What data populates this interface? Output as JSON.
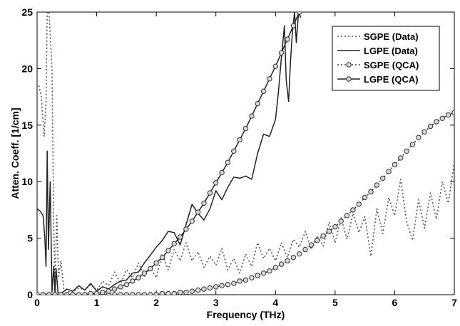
{
  "chart_data": {
    "type": "line",
    "title": "",
    "xlabel": "Frequency (THz)",
    "ylabel": "Atten. Coeff. [1/cm]",
    "xlim": [
      0,
      7
    ],
    "ylim": [
      0,
      25
    ],
    "xticks": [
      0,
      1,
      2,
      3,
      4,
      5,
      6,
      7
    ],
    "yticks": [
      0,
      5,
      10,
      15,
      20,
      25
    ],
    "grid": false,
    "legend_position": "top-right",
    "series": [
      {
        "name": "SGPE (Data)",
        "style": "dotted",
        "color": "#555555",
        "x": [
          0.03,
          0.07,
          0.12,
          0.15,
          0.17,
          0.2,
          0.25,
          0.28,
          0.3,
          0.33,
          0.36,
          0.4,
          0.45,
          0.5,
          0.6,
          0.7,
          0.8,
          0.9,
          1.0,
          1.1,
          1.2,
          1.3,
          1.4,
          1.5,
          1.6,
          1.7,
          1.8,
          1.9,
          2.0,
          2.1,
          2.2,
          2.3,
          2.4,
          2.5,
          2.6,
          2.7,
          2.8,
          2.9,
          3.0,
          3.1,
          3.2,
          3.3,
          3.4,
          3.5,
          3.6,
          3.7,
          3.8,
          3.9,
          4.0,
          4.1,
          4.2,
          4.3,
          4.4,
          4.5,
          4.6,
          4.7,
          4.8,
          4.9,
          5.0,
          5.1,
          5.2,
          5.3,
          5.4,
          5.5,
          5.6,
          5.7,
          5.8,
          5.9,
          6.0,
          6.1,
          6.2,
          6.3,
          6.4,
          6.5,
          6.6,
          6.7,
          6.8,
          6.9,
          7.0
        ],
        "y": [
          18.5,
          17.5,
          14,
          17,
          25,
          25,
          20,
          6,
          1,
          7,
          1.5,
          3,
          0.4,
          0.3,
          0.2,
          0.6,
          0.4,
          0.9,
          0.4,
          1.2,
          0.8,
          2.0,
          1.0,
          2.2,
          1.5,
          2.8,
          1.6,
          2.4,
          1.5,
          3.6,
          2.2,
          4.0,
          3.0,
          4.6,
          3.0,
          3.8,
          2.4,
          3.4,
          2.6,
          4.1,
          2.2,
          3.2,
          1.9,
          3.6,
          2.5,
          4.6,
          3.2,
          4.1,
          3.0,
          4.6,
          3.3,
          4.9,
          4.2,
          5.6,
          4.0,
          5.2,
          4.3,
          6.4,
          4.6,
          6.8,
          4.9,
          7.2,
          5.5,
          6.9,
          3.4,
          7.6,
          5.4,
          8.6,
          7.0,
          10.2,
          6.5,
          4.8,
          8.4,
          5.9,
          9.0,
          6.7,
          10.0,
          8.1,
          11.7
        ]
      },
      {
        "name": "LGPE (Data)",
        "style": "solid",
        "color": "#222222",
        "x": [
          0.0,
          0.05,
          0.1,
          0.13,
          0.15,
          0.17,
          0.19,
          0.22,
          0.25,
          0.28,
          0.3,
          0.32,
          0.35,
          0.4,
          0.5,
          0.6,
          0.7,
          0.8,
          0.9,
          1.0,
          1.1,
          1.2,
          1.3,
          1.4,
          1.5,
          1.6,
          1.7,
          1.8,
          1.9,
          2.0,
          2.1,
          2.2,
          2.3,
          2.4,
          2.5,
          2.6,
          2.7,
          2.8,
          2.9,
          3.0,
          3.1,
          3.2,
          3.3,
          3.4,
          3.5,
          3.6,
          3.7,
          3.8,
          3.9,
          4.0,
          4.05,
          4.1,
          4.15,
          4.18,
          4.22,
          4.25,
          4.28,
          4.32,
          4.35,
          4.38,
          4.4,
          4.42
        ],
        "y": [
          7.6,
          7.4,
          7.0,
          5.0,
          2.5,
          12.7,
          4.0,
          10.0,
          0.2,
          2.5,
          0.1,
          2.3,
          0.2,
          0.1,
          0.5,
          0.3,
          0.8,
          0.4,
          1.0,
          0.3,
          0.7,
          0.5,
          0.9,
          1.2,
          1.3,
          1.9,
          2.0,
          2.8,
          3.5,
          4.2,
          4.8,
          5.6,
          5.5,
          4.4,
          6.2,
          8.0,
          7.2,
          6.6,
          7.6,
          9.2,
          8.4,
          9.5,
          10.4,
          10.3,
          10.5,
          10.2,
          12.5,
          14.2,
          14.0,
          15.5,
          18.0,
          21.0,
          23.8,
          19.0,
          17.1,
          20.5,
          23.0,
          25.0,
          22.3,
          24.5,
          25.0,
          24.5
        ]
      },
      {
        "name": "SGPE (QCA)",
        "style": "dotted-circles",
        "color": "#444444",
        "x": [
          0.0,
          0.1,
          0.2,
          0.3,
          0.4,
          0.5,
          0.6,
          0.7,
          0.8,
          0.9,
          1.0,
          1.1,
          1.2,
          1.3,
          1.4,
          1.5,
          1.6,
          1.7,
          1.8,
          1.9,
          2.0,
          2.1,
          2.2,
          2.3,
          2.4,
          2.5,
          2.6,
          2.7,
          2.8,
          2.9,
          3.0,
          3.1,
          3.2,
          3.3,
          3.4,
          3.5,
          3.6,
          3.7,
          3.8,
          3.9,
          4.0,
          4.1,
          4.2,
          4.3,
          4.4,
          4.5,
          4.6,
          4.7,
          4.8,
          4.9,
          5.0,
          5.1,
          5.2,
          5.3,
          5.4,
          5.5,
          5.6,
          5.7,
          5.8,
          5.9,
          6.0,
          6.1,
          6.2,
          6.3,
          6.4,
          6.5,
          6.6,
          6.7,
          6.8,
          6.9,
          7.0
        ],
        "y": [
          0.0,
          0.0,
          0.0,
          0.0,
          0.0,
          0.0,
          0.0,
          0.0,
          0.0,
          0.0,
          0.0,
          0.0,
          0.0,
          0.0,
          0.0,
          0.0,
          0.0,
          0.0,
          0.0,
          0.0,
          0.0,
          0.1,
          0.1,
          0.1,
          0.2,
          0.2,
          0.3,
          0.4,
          0.5,
          0.6,
          0.7,
          0.8,
          0.9,
          1.0,
          1.2,
          1.3,
          1.5,
          1.7,
          1.9,
          2.1,
          2.4,
          2.7,
          3.0,
          3.3,
          3.6,
          4.0,
          4.4,
          4.8,
          5.2,
          5.6,
          6.0,
          6.5,
          7.0,
          7.5,
          8.0,
          8.6,
          9.1,
          9.7,
          10.3,
          10.9,
          11.5,
          12.1,
          12.7,
          13.3,
          13.9,
          14.4,
          14.9,
          15.3,
          15.6,
          15.9,
          16.1
        ]
      },
      {
        "name": "LGPE (QCA)",
        "style": "solid-circles",
        "color": "#222222",
        "x": [
          0.0,
          0.1,
          0.2,
          0.3,
          0.4,
          0.5,
          0.6,
          0.7,
          0.8,
          0.9,
          1.0,
          1.1,
          1.2,
          1.3,
          1.4,
          1.5,
          1.6,
          1.7,
          1.8,
          1.9,
          2.0,
          2.1,
          2.2,
          2.3,
          2.4,
          2.5,
          2.6,
          2.7,
          2.8,
          2.9,
          3.0,
          3.1,
          3.2,
          3.3,
          3.4,
          3.5,
          3.6,
          3.7,
          3.8,
          3.9,
          4.0,
          4.1,
          4.2,
          4.3,
          4.4
        ],
        "y": [
          0.0,
          0.0,
          0.0,
          0.0,
          0.0,
          0.0,
          0.0,
          0.0,
          0.0,
          0.1,
          0.1,
          0.2,
          0.3,
          0.5,
          0.7,
          0.9,
          1.2,
          1.5,
          1.9,
          2.3,
          2.8,
          3.3,
          3.9,
          4.5,
          5.1,
          5.8,
          6.5,
          7.3,
          8.1,
          9.0,
          9.9,
          10.8,
          11.7,
          12.7,
          13.7,
          14.7,
          15.8,
          16.9,
          18.0,
          19.1,
          20.2,
          21.4,
          22.6,
          23.8,
          25.0
        ]
      }
    ]
  }
}
